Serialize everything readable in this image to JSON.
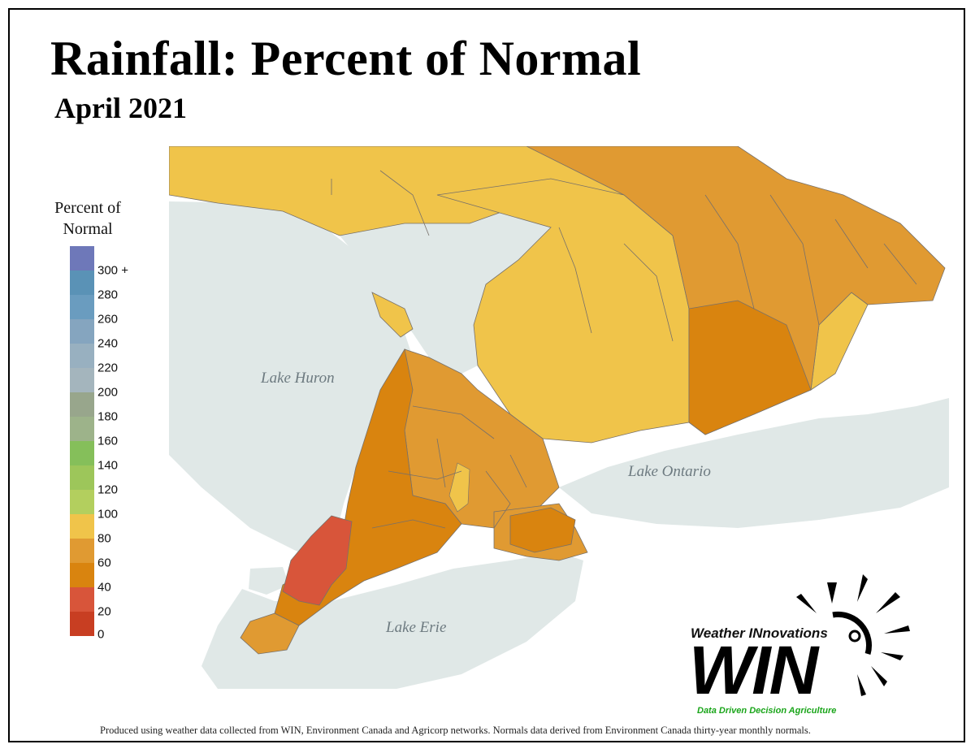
{
  "header": {
    "title": "Rainfall: Percent of Normal",
    "subtitle": "April 2021"
  },
  "legend": {
    "title_line1": "Percent of",
    "title_line2": "Normal",
    "items": [
      {
        "label": "300 +",
        "color": "#6e78b9"
      },
      {
        "label": "280",
        "color": "#5a92b6"
      },
      {
        "label": "260",
        "color": "#6a9cbf"
      },
      {
        "label": "240",
        "color": "#85a5bf"
      },
      {
        "label": "220",
        "color": "#98b0c0"
      },
      {
        "label": "200",
        "color": "#a4b5bd"
      },
      {
        "label": "180",
        "color": "#98a68c"
      },
      {
        "label": "160",
        "color": "#9db38a"
      },
      {
        "label": "140",
        "color": "#85bf5a"
      },
      {
        "label": "120",
        "color": "#9dc65a"
      },
      {
        "label": "100",
        "color": "#b3cf5e"
      },
      {
        "label": "80",
        "color": "#f0c44a"
      },
      {
        "label": "60",
        "color": "#e09a32"
      },
      {
        "label": "40",
        "color": "#d9840f"
      },
      {
        "label": "20",
        "color": "#d8553a"
      },
      {
        "label": "0",
        "color": "#c83e22"
      }
    ]
  },
  "map": {
    "lakes": {
      "huron": "Lake Huron",
      "ontario": "Lake Ontario",
      "erie": "Lake Erie"
    },
    "colors": {
      "water": "#e0e8e7",
      "border": "#77706a"
    }
  },
  "logo": {
    "top_text": "Weather INnovations",
    "main_text": "WIN",
    "tagline": "Data Driven Decision Agriculture"
  },
  "footnote": "Produced using weather data collected from WIN, Environment Canada and Agricorp networks. Normals data derived from Environment Canada thirty-year monthly normals."
}
